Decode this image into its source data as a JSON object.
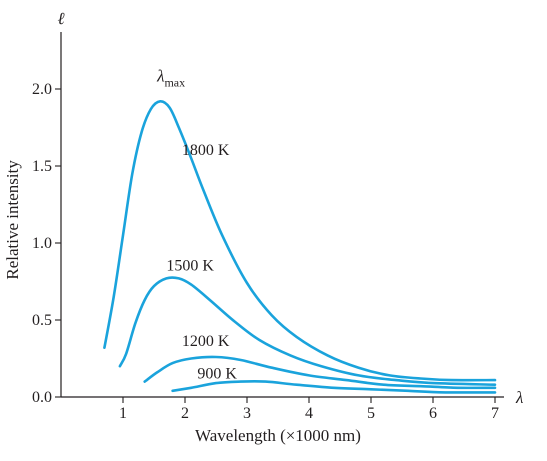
{
  "chart_data": {
    "type": "line",
    "xlabel": "Wavelength (×1000 nm)",
    "ylabel": "Relative intensity",
    "y_axis_symbol": "ℓ",
    "x_axis_symbol": "λ",
    "peak_label_main": "λ",
    "peak_label_sub": "max",
    "xlim": [
      0,
      7.1
    ],
    "ylim": [
      0,
      2.3
    ],
    "x_ticks": [
      1,
      2,
      3,
      4,
      5,
      6,
      7
    ],
    "y_ticks": [
      0.0,
      0.5,
      1.0,
      1.5,
      2.0
    ],
    "y_tick_labels": [
      "0.0",
      "0.5",
      "1.0",
      "1.5",
      "2.0"
    ],
    "grid": false,
    "curve_color": "#1aa3dc",
    "series": [
      {
        "name": "1800 K",
        "label_at": [
          1.95,
          1.57
        ],
        "x": [
          0.7,
          0.85,
          1.0,
          1.15,
          1.3,
          1.45,
          1.6,
          1.75,
          1.9,
          2.1,
          2.3,
          2.6,
          3.0,
          3.4,
          3.8,
          4.3,
          4.8,
          5.3,
          5.8,
          6.3,
          7.0
        ],
        "y": [
          0.32,
          0.65,
          1.05,
          1.45,
          1.72,
          1.87,
          1.92,
          1.88,
          1.75,
          1.55,
          1.34,
          1.05,
          0.74,
          0.53,
          0.39,
          0.27,
          0.19,
          0.14,
          0.12,
          0.11,
          0.11
        ]
      },
      {
        "name": "1500 K",
        "label_at": [
          1.7,
          0.82
        ],
        "x": [
          0.95,
          1.05,
          1.2,
          1.35,
          1.5,
          1.7,
          1.9,
          2.1,
          2.4,
          2.8,
          3.2,
          3.7,
          4.2,
          4.8,
          5.4,
          6.0,
          7.0
        ],
        "y": [
          0.2,
          0.28,
          0.48,
          0.63,
          0.72,
          0.77,
          0.77,
          0.73,
          0.63,
          0.49,
          0.37,
          0.27,
          0.2,
          0.14,
          0.11,
          0.09,
          0.08
        ]
      },
      {
        "name": "1200 K",
        "label_at": [
          1.95,
          0.33
        ],
        "x": [
          1.35,
          1.55,
          1.8,
          2.1,
          2.5,
          2.9,
          3.4,
          4.0,
          4.6,
          5.2,
          5.8,
          6.4,
          7.0
        ],
        "y": [
          0.1,
          0.16,
          0.22,
          0.25,
          0.26,
          0.24,
          0.19,
          0.14,
          0.11,
          0.08,
          0.07,
          0.06,
          0.06
        ]
      },
      {
        "name": "900 K",
        "label_at": [
          2.2,
          0.12
        ],
        "x": [
          1.8,
          2.1,
          2.5,
          2.9,
          3.3,
          3.8,
          4.4,
          5.0,
          5.6,
          6.2,
          7.0
        ],
        "y": [
          0.04,
          0.06,
          0.09,
          0.1,
          0.1,
          0.08,
          0.06,
          0.05,
          0.04,
          0.03,
          0.03
        ]
      }
    ]
  }
}
